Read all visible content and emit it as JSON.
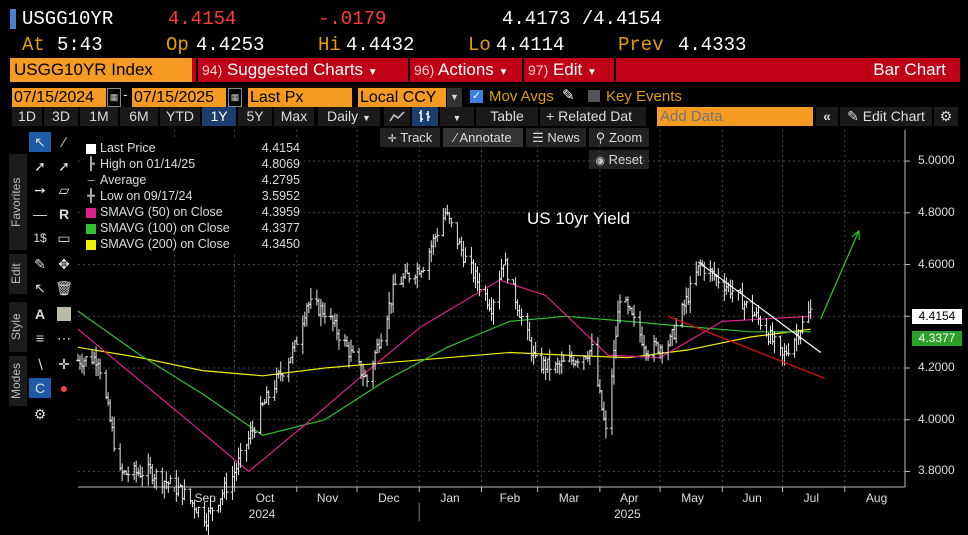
{
  "quote": {
    "ticker": "USGG10YR",
    "last": "4.4154",
    "change": "-.0179",
    "bid_ask": "4.4173 /4.4154",
    "at_label": "At",
    "at_time": "5:43",
    "open_label": "Op",
    "open": "4.4253",
    "high_label": "Hi",
    "high": "4.4432",
    "low_label": "Lo",
    "low": "4.4114",
    "prev_label": "Prev",
    "prev": "4.4333"
  },
  "cmdbar": {
    "security": "USGG10YR Index",
    "menus": [
      {
        "num": "94)",
        "label": "Suggested Charts"
      },
      {
        "num": "96)",
        "label": "Actions"
      },
      {
        "num": "97)",
        "label": "Edit"
      }
    ],
    "title": "Bar Chart"
  },
  "controls": {
    "start_date": "07/15/2024",
    "end_date": "07/15/2025",
    "price_field": "Last Px",
    "currency": "Local CCY",
    "mov_avgs_label": "Mov Avgs",
    "key_events_label": "Key Events"
  },
  "periods": [
    "1D",
    "3D",
    "1M",
    "6M",
    "YTD",
    "1Y",
    "5Y",
    "Max"
  ],
  "active_period": "1Y",
  "frequency": "Daily",
  "toolbar": {
    "table": "Table",
    "related": "Related Dat",
    "add_data_placeholder": "Add Data",
    "edit_chart": "Edit Chart",
    "track": "Track",
    "annotate": "Annotate",
    "news": "News",
    "zoom": "Zoom",
    "reset": "Reset"
  },
  "side_tabs": [
    "Favorites",
    "Edit",
    "Style",
    "Modes"
  ],
  "legend": [
    {
      "label": "Last Price",
      "value": "4.4154",
      "color": "#ffffff"
    },
    {
      "label": "High on 01/14/25",
      "value": "4.8069",
      "color": ""
    },
    {
      "label": "Average",
      "value": "4.2795",
      "color": ""
    },
    {
      "label": "Low on 09/17/24",
      "value": "3.5952",
      "color": ""
    },
    {
      "label": "SMAVG (50)  on Close",
      "value": "4.3959",
      "color": "#e0208a"
    },
    {
      "label": "SMAVG (100)  on Close",
      "value": "4.3377",
      "color": "#30c030"
    },
    {
      "label": "SMAVG (200)  on Close",
      "value": "4.3450",
      "color": "#f0f000"
    }
  ],
  "chart_data": {
    "type": "bar",
    "title": "US 10yr Yield",
    "ylim": [
      3.74,
      5.12
    ],
    "y_ticks": [
      "5.0000",
      "4.8000",
      "4.6000",
      "4.4000",
      "4.2000",
      "4.0000",
      "3.8000"
    ],
    "x_months": [
      "Sep",
      "Oct",
      "Nov",
      "Dec",
      "Jan",
      "Feb",
      "Mar",
      "Apr",
      "May",
      "Jun",
      "Jul",
      "Aug"
    ],
    "x_years": [
      "2024",
      "2025"
    ],
    "last_tag": "4.4154",
    "ma100_tag": "4.3377",
    "price_path": [
      [
        "2024-07-15",
        4.23
      ],
      [
        "2024-07-25",
        4.24
      ],
      [
        "2024-08-05",
        3.79
      ],
      [
        "2024-08-20",
        3.8
      ],
      [
        "2024-09-05",
        3.72
      ],
      [
        "2024-09-17",
        3.62
      ],
      [
        "2024-09-30",
        3.78
      ],
      [
        "2024-10-15",
        4.05
      ],
      [
        "2024-10-31",
        4.28
      ],
      [
        "2024-11-06",
        4.45
      ],
      [
        "2024-11-15",
        4.42
      ],
      [
        "2024-12-06",
        4.15
      ],
      [
        "2024-12-20",
        4.52
      ],
      [
        "2025-01-03",
        4.6
      ],
      [
        "2025-01-14",
        4.8
      ],
      [
        "2025-01-24",
        4.62
      ],
      [
        "2025-02-06",
        4.44
      ],
      [
        "2025-02-12",
        4.62
      ],
      [
        "2025-02-28",
        4.22
      ],
      [
        "2025-03-10",
        4.2
      ],
      [
        "2025-03-28",
        4.27
      ],
      [
        "2025-04-04",
        3.95
      ],
      [
        "2025-04-11",
        4.48
      ],
      [
        "2025-04-25",
        4.27
      ],
      [
        "2025-05-06",
        4.3
      ],
      [
        "2025-05-21",
        4.6
      ],
      [
        "2025-06-06",
        4.5
      ],
      [
        "2025-06-20",
        4.38
      ],
      [
        "2025-07-01",
        4.24
      ],
      [
        "2025-07-15",
        4.42
      ]
    ],
    "sma50": [
      [
        "2024-07-15",
        4.35
      ],
      [
        "2024-08-15",
        4.15
      ],
      [
        "2024-09-15",
        3.95
      ],
      [
        "2024-10-08",
        3.8
      ],
      [
        "2024-11-05",
        3.98
      ],
      [
        "2024-12-05",
        4.18
      ],
      [
        "2025-01-02",
        4.36
      ],
      [
        "2025-02-10",
        4.54
      ],
      [
        "2025-03-05",
        4.48
      ],
      [
        "2025-04-05",
        4.25
      ],
      [
        "2025-05-01",
        4.24
      ],
      [
        "2025-06-01",
        4.38
      ],
      [
        "2025-07-15",
        4.4
      ]
    ],
    "sma100": [
      [
        "2024-07-15",
        4.42
      ],
      [
        "2024-08-15",
        4.25
      ],
      [
        "2024-09-15",
        4.1
      ],
      [
        "2024-10-15",
        3.94
      ],
      [
        "2024-11-15",
        4.0
      ],
      [
        "2024-12-15",
        4.15
      ],
      [
        "2025-01-15",
        4.28
      ],
      [
        "2025-02-15",
        4.38
      ],
      [
        "2025-03-15",
        4.4
      ],
      [
        "2025-04-15",
        4.38
      ],
      [
        "2025-05-15",
        4.36
      ],
      [
        "2025-06-15",
        4.34
      ],
      [
        "2025-07-15",
        4.34
      ]
    ],
    "sma200": [
      [
        "2024-07-15",
        4.28
      ],
      [
        "2024-08-15",
        4.24
      ],
      [
        "2024-09-15",
        4.19
      ],
      [
        "2024-10-15",
        4.17
      ],
      [
        "2024-11-15",
        4.2
      ],
      [
        "2024-12-15",
        4.22
      ],
      [
        "2025-01-15",
        4.24
      ],
      [
        "2025-02-15",
        4.26
      ],
      [
        "2025-03-15",
        4.25
      ],
      [
        "2025-04-15",
        4.24
      ],
      [
        "2025-05-15",
        4.27
      ],
      [
        "2025-06-15",
        4.32
      ],
      [
        "2025-07-15",
        4.35
      ]
    ],
    "trend_white": [
      [
        "2025-05-20",
        4.61
      ],
      [
        "2025-07-20",
        4.26
      ]
    ],
    "trend_red": [
      [
        "2025-05-05",
        4.4
      ],
      [
        "2025-07-22",
        4.16
      ]
    ],
    "projection_green": [
      [
        "2025-07-20",
        4.39
      ],
      [
        "2025-08-08",
        4.73
      ]
    ]
  }
}
